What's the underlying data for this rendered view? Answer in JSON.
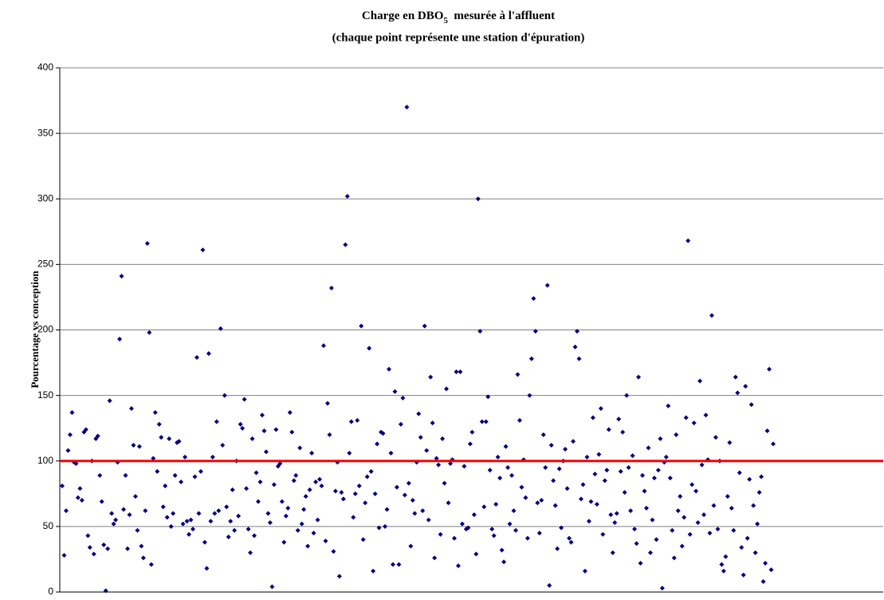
{
  "chart_data": {
    "type": "scatter",
    "title": {
      "text": "Charge en DBO",
      "subscript": "5",
      "suffix": "  mesurée à l'affluent"
    },
    "subtitle": "(chaque point représente une station d'épuration)",
    "y_label": "Pourcentage vs conception",
    "color": "#000080",
    "reference_line": {
      "value": 100,
      "color": "#ff0000"
    },
    "ylim": [
      0,
      400
    ],
    "yticks": [
      0,
      50,
      100,
      150,
      200,
      250,
      300,
      350,
      400
    ],
    "grid": true,
    "values": [
      81,
      28,
      62,
      108,
      120,
      137,
      99,
      98,
      72,
      79,
      70,
      122,
      124,
      43,
      34,
      100,
      29,
      117,
      119,
      89,
      69,
      36,
      1,
      33,
      146,
      60,
      52,
      55,
      99,
      193,
      241,
      63,
      89,
      33,
      59,
      140,
      112,
      73,
      47,
      111,
      35,
      26,
      62,
      266,
      198,
      21,
      102,
      137,
      92,
      128,
      118,
      65,
      81,
      57,
      117,
      50,
      60,
      89,
      114,
      115,
      84,
      52,
      103,
      54,
      44,
      55,
      48,
      88,
      179,
      60,
      92,
      261,
      38,
      18,
      182,
      54,
      103,
      60,
      130,
      62,
      201,
      112,
      150,
      65,
      42,
      54,
      78,
      47,
      100,
      58,
      128,
      125,
      147,
      79,
      48,
      30,
      117,
      43,
      91,
      69,
      84,
      135,
      123,
      107,
      60,
      53,
      4,
      82,
      124,
      96,
      98,
      69,
      38,
      58,
      64,
      137,
      122,
      85,
      89,
      47,
      110,
      52,
      63,
      73,
      35,
      78,
      106,
      45,
      84,
      55,
      86,
      81,
      188,
      39,
      144,
      120,
      232,
      31,
      77,
      99,
      12,
      76,
      71,
      265,
      302,
      106,
      130,
      57,
      75,
      131,
      81,
      203,
      40,
      68,
      88,
      186,
      92,
      16,
      75,
      113,
      49,
      122,
      121,
      50,
      63,
      170,
      106,
      21,
      153,
      80,
      21,
      128,
      148,
      74,
      370,
      83,
      35,
      70,
      60,
      99,
      136,
      118,
      62,
      203,
      108,
      55,
      164,
      129,
      26,
      102,
      97,
      44,
      117,
      83,
      155,
      68,
      98,
      101,
      41,
      168,
      20,
      168,
      52,
      96,
      48,
      49,
      113,
      122,
      59,
      29,
      300,
      199,
      130,
      65,
      130,
      149,
      93,
      48,
      43,
      67,
      103,
      87,
      32,
      23,
      111,
      95,
      52,
      89,
      62,
      47,
      166,
      131,
      80,
      101,
      72,
      41,
      150,
      178,
      224,
      199,
      68,
      45,
      70,
      120,
      95,
      234,
      5,
      112,
      85,
      66,
      33,
      94,
      49,
      100,
      109,
      79,
      41,
      38,
      115,
      187,
      199,
      178,
      71,
      82,
      16,
      103,
      54,
      69,
      133,
      90,
      67,
      105,
      140,
      44,
      85,
      93,
      124,
      59,
      30,
      53,
      60,
      132,
      92,
      122,
      76,
      150,
      95,
      62,
      104,
      48,
      37,
      164,
      22,
      89,
      77,
      64,
      110,
      30,
      55,
      87,
      40,
      93,
      117,
      3,
      99,
      103,
      142,
      87,
      47,
      26,
      120,
      62,
      73,
      35,
      57,
      133,
      268,
      44,
      82,
      129,
      77,
      53,
      161,
      97,
      59,
      135,
      101,
      45,
      211,
      66,
      118,
      48,
      100,
      21,
      16,
      27,
      73,
      114,
      64,
      47,
      164,
      152,
      91,
      34,
      13,
      157,
      41,
      86,
      143,
      66,
      30,
      52,
      76,
      88,
      8,
      22,
      123,
      170,
      17,
      113
    ]
  }
}
